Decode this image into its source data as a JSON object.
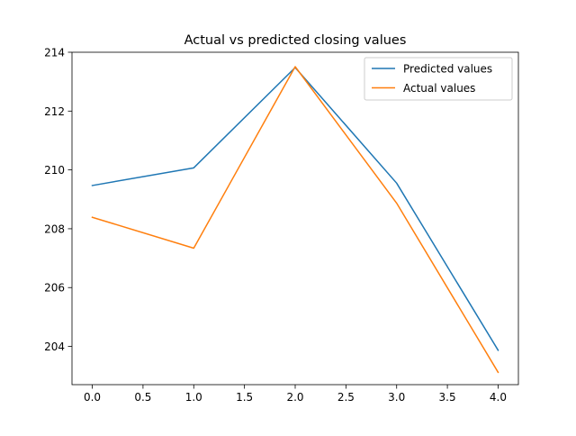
{
  "chart_data": {
    "type": "line",
    "title": "Actual vs predicted closing values",
    "xlabel": "",
    "ylabel": "",
    "x": [
      0,
      1,
      2,
      3,
      4
    ],
    "xlim": [
      -0.2,
      4.2
    ],
    "ylim": [
      202.7,
      214.0
    ],
    "xticks": [
      "0.0",
      "0.5",
      "1.0",
      "1.5",
      "2.0",
      "2.5",
      "3.0",
      "3.5",
      "4.0"
    ],
    "yticks": [
      "204",
      "206",
      "208",
      "210",
      "212",
      "214"
    ],
    "grid": false,
    "legend_position": "top-right",
    "series": [
      {
        "name": "Predicted values",
        "color": "#1f77b4",
        "values": [
          209.47,
          210.07,
          213.48,
          209.55,
          203.87
        ]
      },
      {
        "name": "Actual values",
        "color": "#ff7f0e",
        "values": [
          208.39,
          207.34,
          213.51,
          208.87,
          203.12
        ]
      }
    ]
  }
}
